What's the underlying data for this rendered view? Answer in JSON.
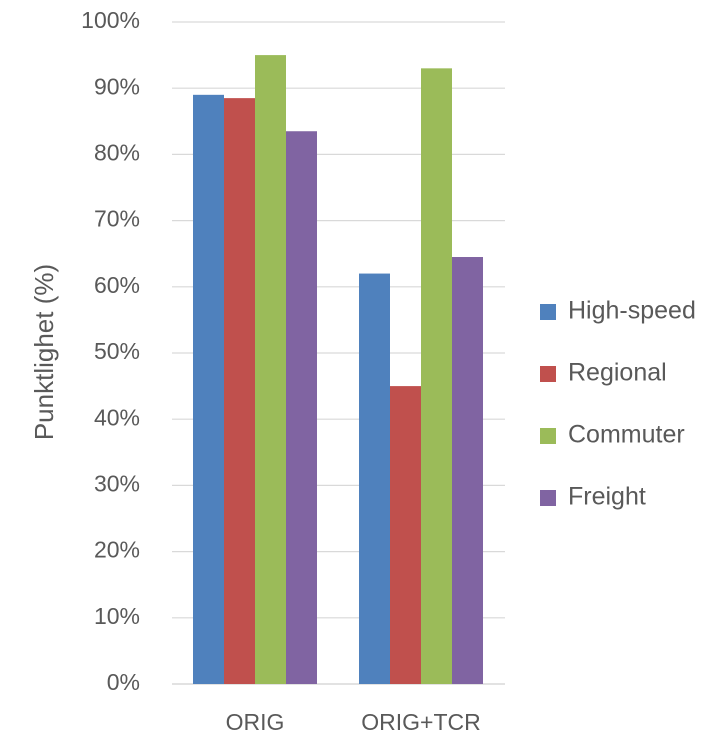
{
  "chart_data": {
    "type": "bar",
    "title": "",
    "xlabel": "",
    "ylabel": "Punktlighet (%)",
    "categories": [
      "ORIG",
      "ORIG+TCR"
    ],
    "series": [
      {
        "name": "High-speed",
        "values": [
          89,
          62
        ],
        "color": "#4F81BD"
      },
      {
        "name": "Regional",
        "values": [
          88.5,
          45
        ],
        "color": "#C0504D"
      },
      {
        "name": "Commuter",
        "values": [
          95,
          93
        ],
        "color": "#9BBB59"
      },
      {
        "name": "Freight",
        "values": [
          83.5,
          64.5
        ],
        "color": "#8064A2"
      }
    ],
    "ylim": [
      0,
      100
    ],
    "yticks": [
      0,
      10,
      20,
      30,
      40,
      50,
      60,
      70,
      80,
      90,
      100
    ],
    "yticks_labels": [
      "0%",
      "10%",
      "20%",
      "30%",
      "40%",
      "50%",
      "60%",
      "70%",
      "80%",
      "90%",
      "100%"
    ],
    "grid": true,
    "legend_position": "right"
  }
}
